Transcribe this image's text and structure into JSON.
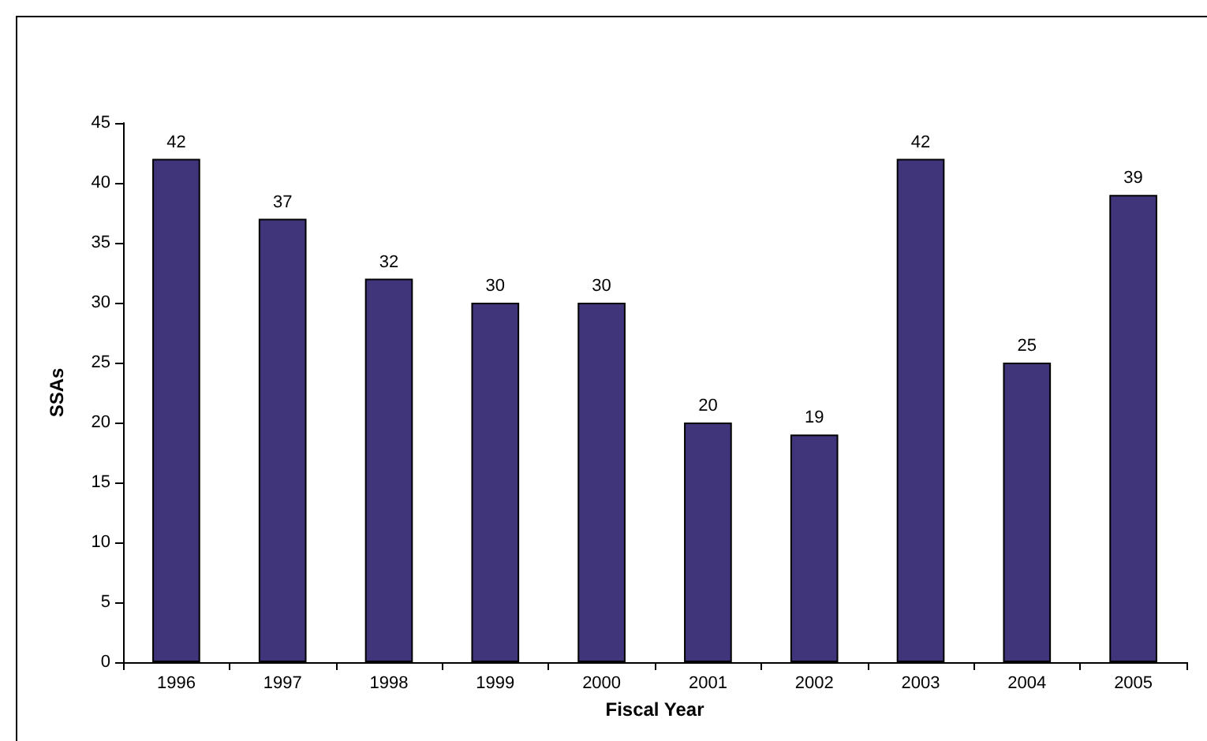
{
  "chart_data": {
    "type": "bar",
    "xlabel": "Fiscal Year",
    "ylabel": "SSAs",
    "categories": [
      "1996",
      "1997",
      "1998",
      "1999",
      "2000",
      "2001",
      "2002",
      "2003",
      "2004",
      "2005"
    ],
    "values": [
      42,
      37,
      32,
      30,
      30,
      20,
      19,
      42,
      25,
      39
    ],
    "color": "#40357a",
    "ylim": [
      0,
      45
    ],
    "yticks": [
      0,
      5,
      10,
      15,
      20,
      25,
      30,
      35,
      40,
      45
    ],
    "data_labels": true,
    "grid": false
  }
}
